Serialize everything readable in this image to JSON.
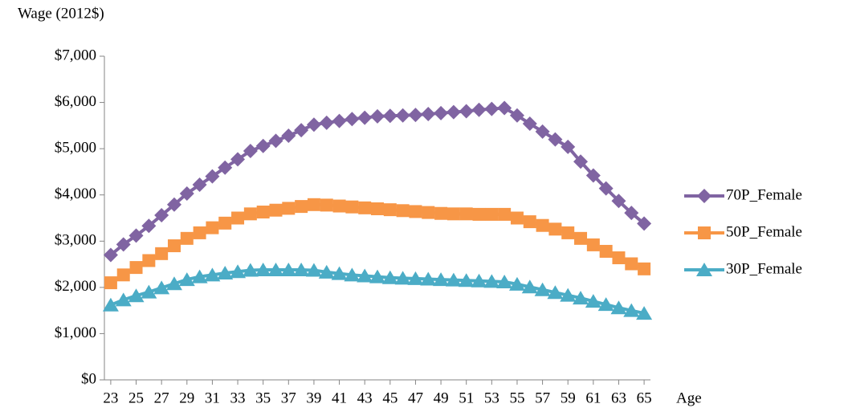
{
  "chart_data": {
    "type": "line",
    "y_label": "Wage (2012$)",
    "x_label": "Age",
    "x": [
      23,
      24,
      25,
      26,
      27,
      28,
      29,
      30,
      31,
      32,
      33,
      34,
      35,
      36,
      37,
      38,
      39,
      40,
      41,
      42,
      43,
      44,
      45,
      46,
      47,
      48,
      49,
      50,
      51,
      52,
      53,
      54,
      55,
      56,
      57,
      58,
      59,
      60,
      61,
      62,
      63,
      64,
      65
    ],
    "xlim": [
      22.5,
      65.5
    ],
    "xticks": [
      23,
      25,
      27,
      29,
      31,
      33,
      35,
      37,
      39,
      41,
      43,
      45,
      47,
      49,
      51,
      53,
      55,
      57,
      59,
      61,
      63,
      65
    ],
    "ylim": [
      0,
      7000
    ],
    "yticks": [
      {
        "value": 0,
        "label": "$0"
      },
      {
        "value": 1000,
        "label": "$1,000"
      },
      {
        "value": 2000,
        "label": "$2,000"
      },
      {
        "value": 3000,
        "label": "$3,000"
      },
      {
        "value": 4000,
        "label": "$4,000"
      },
      {
        "value": 5000,
        "label": "$5,000"
      },
      {
        "value": 6000,
        "label": "$6,000"
      },
      {
        "value": 7000,
        "label": "$7,000"
      }
    ],
    "grid": false,
    "legend": "right",
    "series": [
      {
        "name": "70P_Female",
        "color": "#8064a2",
        "marker": "diamond",
        "values": [
          2700,
          2930,
          3120,
          3330,
          3560,
          3790,
          4030,
          4220,
          4400,
          4590,
          4770,
          4950,
          5060,
          5170,
          5280,
          5400,
          5520,
          5560,
          5600,
          5640,
          5670,
          5700,
          5710,
          5720,
          5730,
          5750,
          5770,
          5790,
          5810,
          5840,
          5860,
          5880,
          5720,
          5540,
          5370,
          5200,
          5040,
          4720,
          4420,
          4140,
          3870,
          3610,
          3380
        ]
      },
      {
        "name": "50P_Female",
        "color": "#f79646",
        "marker": "square",
        "values": [
          2100,
          2270,
          2430,
          2580,
          2730,
          2900,
          3060,
          3180,
          3290,
          3390,
          3500,
          3590,
          3630,
          3670,
          3710,
          3750,
          3790,
          3780,
          3760,
          3740,
          3720,
          3700,
          3680,
          3660,
          3640,
          3620,
          3600,
          3590,
          3590,
          3580,
          3580,
          3580,
          3500,
          3420,
          3340,
          3260,
          3180,
          3060,
          2920,
          2780,
          2640,
          2510,
          2400
        ]
      },
      {
        "name": "30P_Female",
        "color": "#4bacc6",
        "marker": "triangle",
        "values": [
          1620,
          1730,
          1820,
          1900,
          1990,
          2080,
          2170,
          2230,
          2270,
          2310,
          2340,
          2370,
          2380,
          2380,
          2380,
          2380,
          2370,
          2330,
          2300,
          2270,
          2250,
          2230,
          2210,
          2200,
          2190,
          2180,
          2170,
          2160,
          2150,
          2140,
          2130,
          2120,
          2070,
          2010,
          1950,
          1890,
          1830,
          1770,
          1700,
          1630,
          1560,
          1500,
          1440
        ]
      }
    ]
  }
}
